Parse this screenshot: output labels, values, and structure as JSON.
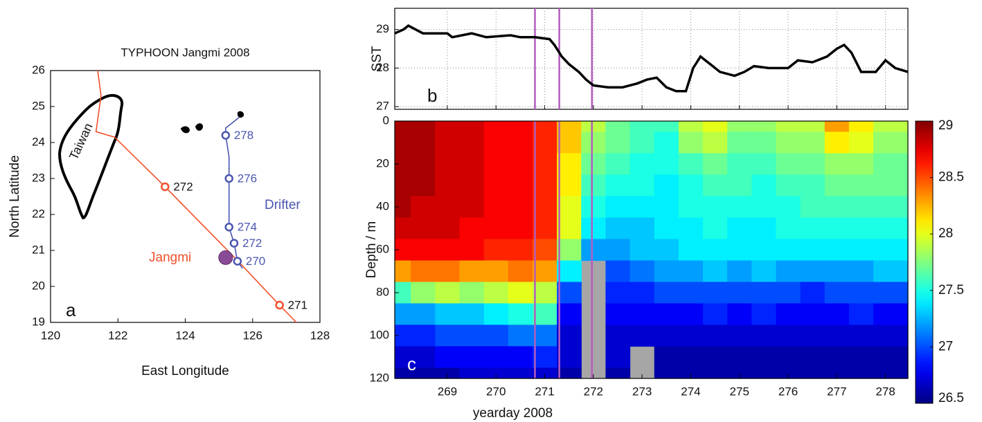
{
  "chart_data": [
    {
      "type": "map",
      "title": "TYPHOON Jangmi 2008",
      "xlabel": "East Longitude",
      "ylabel": "North Latitude",
      "panel_label": "a",
      "xlim": [
        120,
        128
      ],
      "ylim": [
        19,
        26
      ],
      "xticks": [
        120,
        122,
        124,
        126,
        128
      ],
      "yticks": [
        19,
        20,
        21,
        22,
        23,
        24,
        25,
        26
      ],
      "region_label": "Taiwan",
      "tracks": [
        {
          "name": "Jangmi",
          "color": "#f0502a",
          "x": [
            121.4,
            121.5,
            121.35,
            121.9,
            123.4,
            125.5,
            126.8,
            127.3
          ],
          "y": [
            26,
            25.3,
            24.3,
            24.15,
            22.77,
            20.77,
            19.48,
            19.0
          ],
          "points": [
            {
              "day": 272,
              "x": 123.4,
              "y": 22.77
            },
            {
              "day": 271,
              "x": 126.8,
              "y": 19.48
            }
          ]
        },
        {
          "name": "Drifter",
          "color": "#4a55b0",
          "x": [
            125.6,
            125.2,
            125.2,
            125.3,
            125.3,
            125.3,
            125.3,
            125.45,
            125.55,
            125.7
          ],
          "y": [
            24.7,
            24.4,
            24.2,
            23.6,
            23.0,
            22.3,
            21.65,
            21.2,
            20.7,
            20.5
          ],
          "points": [
            {
              "day": 278,
              "x": 125.2,
              "y": 24.2
            },
            {
              "day": 276,
              "x": 125.3,
              "y": 23.0
            },
            {
              "day": 274,
              "x": 125.3,
              "y": 21.65
            },
            {
              "day": 272,
              "x": 125.45,
              "y": 21.2
            },
            {
              "day": 270,
              "x": 125.55,
              "y": 20.7
            }
          ]
        }
      ],
      "marker": {
        "x": 125.2,
        "y": 20.8,
        "color": "#8a4b96"
      }
    },
    {
      "type": "line",
      "ylabel": "SST",
      "panel_label": "b",
      "grid": true,
      "show_xtick_labels": false,
      "color": "#000000",
      "xlim": [
        267.92,
        278.46
      ],
      "ylim": [
        26.93,
        29.55
      ],
      "xticks": [
        269,
        270,
        271,
        272,
        273,
        274,
        275,
        276,
        277,
        278
      ],
      "yticks": [
        27,
        28,
        29
      ],
      "x": [
        267.92,
        268.1,
        268.2,
        268.35,
        268.5,
        269.0,
        269.1,
        269.5,
        269.8,
        270.3,
        270.5,
        270.8,
        271.1,
        271.2,
        271.35,
        271.5,
        271.7,
        271.85,
        272.0,
        272.3,
        272.6,
        272.9,
        273.1,
        273.3,
        273.5,
        273.7,
        273.9,
        274.05,
        274.2,
        274.4,
        274.6,
        274.9,
        275.1,
        275.3,
        275.6,
        276.0,
        276.2,
        276.5,
        276.8,
        277.0,
        277.15,
        277.3,
        277.5,
        277.8,
        278.0,
        278.2,
        278.46
      ],
      "y": [
        28.9,
        29.0,
        29.1,
        29.0,
        28.9,
        28.9,
        28.8,
        28.9,
        28.8,
        28.85,
        28.8,
        28.8,
        28.75,
        28.6,
        28.3,
        28.1,
        27.9,
        27.7,
        27.55,
        27.5,
        27.5,
        27.6,
        27.7,
        27.75,
        27.5,
        27.4,
        27.4,
        28.0,
        28.3,
        28.1,
        27.9,
        27.8,
        27.9,
        28.05,
        28.0,
        28.0,
        28.2,
        28.15,
        28.3,
        28.5,
        28.6,
        28.4,
        27.9,
        27.9,
        28.2,
        28.0,
        27.9
      ],
      "vlines": {
        "color": "#b45cc0",
        "x": [
          270.8,
          271.3,
          271.97
        ]
      }
    },
    {
      "type": "heatmap",
      "xlabel": "yearday 2008",
      "ylabel": "Depth / m",
      "panel_label": "c",
      "colormap": "jet",
      "y_reversed": true,
      "xlim": [
        267.92,
        278.46
      ],
      "ylim": [
        0,
        120
      ],
      "xticks": [
        269,
        270,
        271,
        272,
        273,
        274,
        275,
        276,
        277,
        278
      ],
      "yticks": [
        0,
        20,
        40,
        60,
        80,
        100,
        120
      ],
      "zlim": [
        26.5,
        29
      ],
      "zticks": [
        26.5,
        27,
        27.5,
        28,
        28.5,
        29
      ],
      "x": [
        268,
        268.5,
        269,
        269.5,
        270,
        270.5,
        271,
        271.5,
        272,
        272.5,
        273,
        273.5,
        274,
        274.5,
        275,
        275.5,
        276,
        276.5,
        277,
        277.5,
        278
      ],
      "y": [
        0,
        10,
        20,
        30,
        40,
        50,
        60,
        70,
        80,
        90,
        100,
        110,
        120
      ],
      "z": [
        [
          28.9,
          28.9,
          28.8,
          28.8,
          28.7,
          28.7,
          28.6,
          28.2,
          27.9,
          27.7,
          27.6,
          27.6,
          27.9,
          28.0,
          27.8,
          27.8,
          27.9,
          27.9,
          28.3,
          28.1,
          27.9
        ],
        [
          28.9,
          28.9,
          28.8,
          28.8,
          28.7,
          28.7,
          28.6,
          28.2,
          27.8,
          27.7,
          27.6,
          27.5,
          27.8,
          27.9,
          27.7,
          27.7,
          27.8,
          27.8,
          28.1,
          28.0,
          27.8
        ],
        [
          28.9,
          28.9,
          28.8,
          28.8,
          28.7,
          28.7,
          28.6,
          28.1,
          27.7,
          27.6,
          27.5,
          27.5,
          27.6,
          27.7,
          27.6,
          27.6,
          27.7,
          27.7,
          27.8,
          27.8,
          27.7
        ],
        [
          28.9,
          28.9,
          28.8,
          28.8,
          28.7,
          28.7,
          28.6,
          28.1,
          27.6,
          27.5,
          27.5,
          27.4,
          27.5,
          27.6,
          27.6,
          27.5,
          27.6,
          27.6,
          27.7,
          27.7,
          27.7
        ],
        [
          28.9,
          28.8,
          28.8,
          28.8,
          28.7,
          28.7,
          28.6,
          28.0,
          27.5,
          27.4,
          27.4,
          27.4,
          27.5,
          27.5,
          27.5,
          27.5,
          27.5,
          27.6,
          27.6,
          27.6,
          27.6
        ],
        [
          28.8,
          28.8,
          28.8,
          28.7,
          28.7,
          28.7,
          28.6,
          28.0,
          27.4,
          27.3,
          27.3,
          27.4,
          27.4,
          27.5,
          27.4,
          27.4,
          27.5,
          27.5,
          27.5,
          27.5,
          27.5
        ],
        [
          28.7,
          28.7,
          28.7,
          28.7,
          28.6,
          28.6,
          28.5,
          27.8,
          27.2,
          27.2,
          27.3,
          27.3,
          27.4,
          27.4,
          27.4,
          27.4,
          27.4,
          27.4,
          27.4,
          27.4,
          27.4
        ],
        [
          28.3,
          28.4,
          28.4,
          28.3,
          28.3,
          28.4,
          28.3,
          27.4,
          null,
          27.0,
          27.1,
          27.2,
          27.2,
          27.3,
          27.2,
          27.3,
          27.2,
          27.2,
          27.2,
          27.2,
          27.3
        ],
        [
          27.6,
          27.8,
          27.9,
          27.8,
          27.9,
          28.0,
          27.9,
          27.0,
          null,
          26.9,
          26.9,
          27.0,
          27.0,
          27.0,
          27.0,
          27.0,
          27.0,
          26.9,
          27.0,
          27.0,
          27.0
        ],
        [
          27.2,
          27.2,
          27.3,
          27.3,
          27.4,
          27.5,
          27.6,
          26.8,
          null,
          26.8,
          26.8,
          26.8,
          26.8,
          26.9,
          26.8,
          26.9,
          26.8,
          26.8,
          26.8,
          26.9,
          26.8
        ],
        [
          26.9,
          26.9,
          27.0,
          27.0,
          27.0,
          27.1,
          27.1,
          26.7,
          null,
          26.7,
          26.7,
          26.7,
          26.7,
          26.7,
          26.7,
          26.7,
          26.7,
          26.7,
          26.7,
          26.7,
          26.7
        ],
        [
          26.7,
          26.7,
          26.8,
          26.8,
          26.8,
          26.8,
          26.9,
          26.7,
          null,
          26.7,
          null,
          26.6,
          26.6,
          26.6,
          26.6,
          26.6,
          26.6,
          26.6,
          26.6,
          26.6,
          26.6
        ],
        [
          26.6,
          26.6,
          26.6,
          26.7,
          26.7,
          26.7,
          26.7,
          26.6,
          null,
          26.6,
          null,
          26.6,
          26.6,
          26.6,
          26.6,
          26.6,
          26.6,
          26.6,
          26.6,
          26.6,
          26.6
        ]
      ],
      "vlines": {
        "color": "#b45cc0",
        "x": [
          270.8,
          271.3,
          271.97
        ]
      }
    }
  ]
}
